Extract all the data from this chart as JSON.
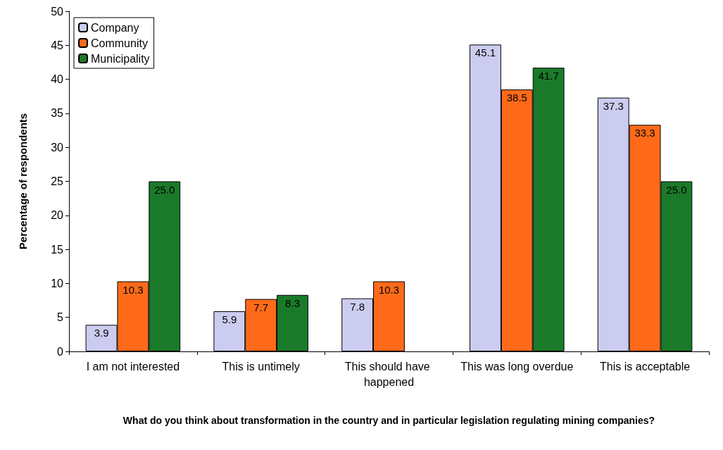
{
  "chart_data": {
    "type": "bar",
    "xlabel": "What do you think about transformation in the country and in particular legislation regulating mining companies?",
    "ylabel": "Percentage of respondents",
    "categories": [
      "I am not interested",
      "This is untimely",
      "This should have happened",
      "This was long overdue",
      "This is acceptable"
    ],
    "series": [
      {
        "name": "Company",
        "color": "#ccccf0",
        "values": [
          3.9,
          5.9,
          7.8,
          45.1,
          37.3
        ],
        "value_labels": [
          "3.9",
          "5.9",
          "7.8",
          "45.1",
          "37.3"
        ]
      },
      {
        "name": "Community",
        "color": "#ff6a1a",
        "values": [
          10.3,
          7.7,
          10.3,
          38.5,
          33.3
        ],
        "value_labels": [
          "10.3",
          "7.7",
          "10.3",
          "38.5",
          "33.3"
        ]
      },
      {
        "name": "Municipality",
        "color": "#1a7a2a",
        "values": [
          25.0,
          8.3,
          null,
          41.7,
          25.0
        ],
        "value_labels": [
          "25.0",
          "8.3",
          null,
          "41.7",
          "25.0"
        ]
      }
    ],
    "ylim": [
      0,
      50
    ],
    "yticks": [
      0,
      5,
      10,
      15,
      20,
      25,
      30,
      35,
      40,
      45,
      50
    ],
    "grid": false,
    "legend": "top left"
  }
}
